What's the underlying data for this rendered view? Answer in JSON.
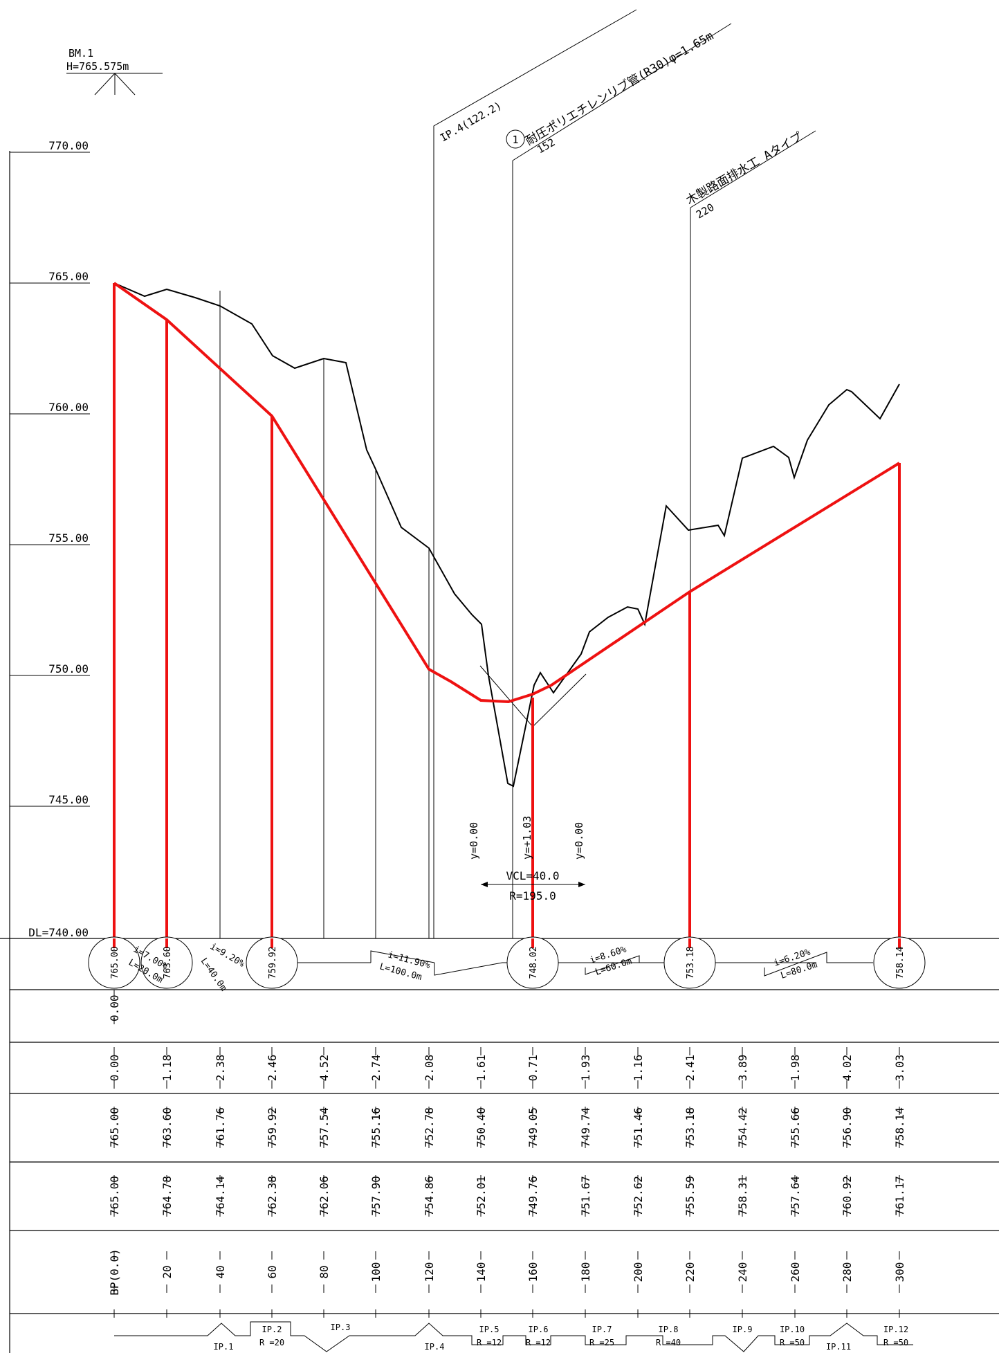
{
  "benchmark": {
    "name": "BM.1",
    "height": "H=765.575m"
  },
  "datum": "DL=740.00",
  "elevation_labels": [
    "770.00",
    "765.00",
    "760.00",
    "755.00",
    "750.00",
    "745.00"
  ],
  "annotations": {
    "ip4": "IP.4(122.2)",
    "pipe_number": "1",
    "pipe": "耐圧ポリエチレンリブ管(R30)φ=1.65m",
    "pipe_station": "152",
    "drain": "木製路面排水工 Aタイプ",
    "drain_station": "220"
  },
  "vertical_curve": {
    "y_start": "y=0.00",
    "y_mid": "y=+1.03",
    "y_end": "y=0.00",
    "vcl": "VCL=40.0",
    "r": "R=195.0"
  },
  "grade_circles": [
    "765.00",
    "763.60",
    "759.92",
    "748.02",
    "753.18",
    "758.14"
  ],
  "slopes": [
    {
      "i": "i=7.00%",
      "l": "L=20.0m"
    },
    {
      "i": "i=9.20%",
      "l": "L=40.0m"
    },
    {
      "i": "i=11.90%",
      "l": "L=100.0m"
    },
    {
      "i": "i=8.60%",
      "l": "L=60.0m"
    },
    {
      "i": "i=6.20%",
      "l": "L=80.0m"
    }
  ],
  "row_single": "0.00",
  "cut_fill": [
    "0.00",
    "1.18",
    "2.38",
    "2.46",
    "4.52",
    "2.74",
    "2.08",
    "1.61",
    "0.71",
    "1.93",
    "1.16",
    "2.41",
    "3.89",
    "1.98",
    "4.02",
    "3.03"
  ],
  "plan_height": [
    "765.00",
    "763.60",
    "761.76",
    "759.92",
    "757.54",
    "755.16",
    "752.78",
    "750.40",
    "749.05",
    "749.74",
    "751.46",
    "753.18",
    "754.42",
    "755.66",
    "756.90",
    "758.14"
  ],
  "ground_height": [
    "765.00",
    "764.78",
    "764.14",
    "762.38",
    "762.06",
    "757.90",
    "754.86",
    "752.01",
    "749.76",
    "751.67",
    "752.62",
    "755.59",
    "758.31",
    "757.64",
    "760.92",
    "761.17"
  ],
  "stations": [
    "BP(0.0)",
    "20",
    "40",
    "60",
    "80",
    "100",
    "120",
    "140",
    "160",
    "180",
    "200",
    "220",
    "240",
    "260",
    "280",
    "300"
  ],
  "curves": [
    {
      "ip": "IP.1",
      "r": ""
    },
    {
      "ip": "IP.2",
      "r": "R =20"
    },
    {
      "ip": "IP.3",
      "r": ""
    },
    {
      "ip": "IP.4",
      "r": ""
    },
    {
      "ip": "IP.5",
      "r": "R =12"
    },
    {
      "ip": "IP.6",
      "r": "R =12"
    },
    {
      "ip": "IP.7",
      "r": "R =25"
    },
    {
      "ip": "IP.8",
      "r": "R =40"
    },
    {
      "ip": "IP.9",
      "r": ""
    },
    {
      "ip": "IP.10",
      "r": "R =50"
    },
    {
      "ip": "IP.11",
      "r": ""
    },
    {
      "ip": "IP.12",
      "r": "R =50"
    }
  ],
  "colors": {
    "design_line": "#ee1111",
    "linework": "#000000",
    "background": "#ffffff"
  }
}
